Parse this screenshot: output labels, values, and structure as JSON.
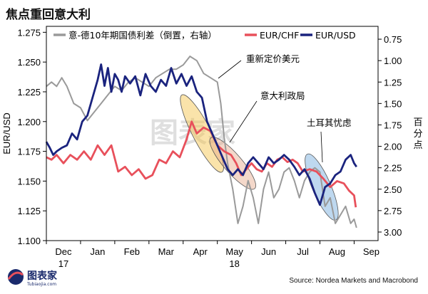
{
  "page": {
    "title": "焦点重回意大利",
    "source": "Source: Nordea Markets and Macrobond",
    "logo_text": "图表家",
    "watermark_text": "图表家",
    "logo_subtext": "Tubiaojia.com"
  },
  "chart_data": {
    "type": "line",
    "title": "焦点重回意大利",
    "ylabel_left": "EUR/USD",
    "ylabel_right": "百分点",
    "yleft_ticks": [
      "1.100",
      "1.125",
      "1.150",
      "1.175",
      "1.200",
      "1.225",
      "1.250",
      "1.275"
    ],
    "yleft_range": [
      1.1,
      1.28
    ],
    "yright_ticks": [
      "0.75",
      "1.00",
      "1.25",
      "1.50",
      "1.75",
      "2.00",
      "2.25",
      "2.50",
      "2.75",
      "3.00"
    ],
    "yright_range": [
      0.6,
      3.1
    ],
    "yright_inverted": true,
    "x_ticks": [
      "Dec",
      "Jan",
      "Feb",
      "Mar",
      "Apr",
      "May",
      "Jun",
      "Jul",
      "Aug",
      "Sep"
    ],
    "x_year_labels": [
      {
        "at": "Dec",
        "text": "17"
      },
      {
        "at": "May",
        "text": "18"
      }
    ],
    "x_range_months": [
      0,
      9.7
    ],
    "grid": false,
    "legend": "top",
    "series": [
      {
        "name": "意-德10年期国债利差（倒置，右轴）",
        "axis": "right",
        "color": "#9a9a9a",
        "x": [
          0.0,
          0.15,
          0.3,
          0.45,
          0.6,
          0.8,
          1.0,
          1.2,
          1.4,
          1.6,
          1.8,
          2.0,
          2.2,
          2.4,
          2.6,
          2.8,
          3.0,
          3.2,
          3.4,
          3.6,
          3.8,
          4.0,
          4.2,
          4.4,
          4.6,
          4.8,
          5.0,
          5.1,
          5.2,
          5.3,
          5.45,
          5.6,
          5.75,
          5.9,
          6.05,
          6.2,
          6.35,
          6.5,
          6.65,
          6.8,
          6.95,
          7.1,
          7.25,
          7.4,
          7.55,
          7.7,
          7.85,
          8.0,
          8.15,
          8.3,
          8.45,
          8.6,
          8.75,
          8.9,
          9.0,
          9.07
        ],
        "values": [
          1.3,
          1.25,
          1.3,
          1.2,
          1.3,
          1.5,
          1.55,
          1.7,
          1.6,
          1.5,
          1.4,
          1.3,
          1.35,
          1.25,
          1.2,
          1.25,
          1.3,
          1.2,
          1.15,
          1.1,
          1.1,
          1.05,
          0.95,
          1.0,
          1.15,
          1.2,
          1.25,
          1.5,
          1.9,
          2.2,
          2.5,
          2.9,
          2.7,
          2.4,
          2.6,
          2.9,
          2.5,
          2.3,
          2.6,
          2.5,
          2.3,
          2.25,
          2.4,
          2.6,
          2.4,
          2.3,
          2.25,
          2.3,
          2.7,
          2.6,
          2.9,
          2.8,
          2.7,
          2.9,
          2.85,
          2.95
        ]
      },
      {
        "name": "EUR/CHF",
        "axis": "left",
        "color": "#e8505b",
        "x": [
          0.0,
          0.15,
          0.3,
          0.5,
          0.7,
          0.9,
          1.1,
          1.3,
          1.5,
          1.7,
          1.9,
          2.1,
          2.3,
          2.5,
          2.7,
          2.9,
          3.1,
          3.3,
          3.5,
          3.7,
          3.9,
          4.1,
          4.25,
          4.4,
          4.6,
          4.8,
          5.0,
          5.2,
          5.4,
          5.55,
          5.7,
          5.85,
          6.0,
          6.15,
          6.3,
          6.45,
          6.6,
          6.75,
          6.9,
          7.05,
          7.2,
          7.35,
          7.5,
          7.7,
          7.9,
          8.1,
          8.3,
          8.5,
          8.7,
          8.85,
          9.0,
          9.05
        ],
        "values": [
          1.17,
          1.168,
          1.172,
          1.165,
          1.172,
          1.168,
          1.175,
          1.168,
          1.18,
          1.172,
          1.18,
          1.158,
          1.162,
          1.155,
          1.16,
          1.152,
          1.155,
          1.168,
          1.165,
          1.175,
          1.17,
          1.185,
          1.2,
          1.19,
          1.195,
          1.192,
          1.18,
          1.175,
          1.172,
          1.165,
          1.155,
          1.16,
          1.165,
          1.16,
          1.158,
          1.165,
          1.162,
          1.168,
          1.17,
          1.166,
          1.168,
          1.165,
          1.158,
          1.16,
          1.158,
          1.152,
          1.145,
          1.15,
          1.148,
          1.142,
          1.138,
          1.128
        ]
      },
      {
        "name": "EUR/USD",
        "axis": "left",
        "color": "#1a237e",
        "x": [
          0.0,
          0.1,
          0.2,
          0.3,
          0.45,
          0.6,
          0.75,
          0.9,
          1.05,
          1.2,
          1.35,
          1.5,
          1.6,
          1.7,
          1.8,
          1.9,
          2.0,
          2.1,
          2.2,
          2.3,
          2.45,
          2.6,
          2.75,
          2.9,
          3.05,
          3.2,
          3.35,
          3.5,
          3.65,
          3.8,
          3.95,
          4.1,
          4.25,
          4.4,
          4.55,
          4.7,
          4.85,
          5.0,
          5.15,
          5.3,
          5.45,
          5.6,
          5.75,
          5.9,
          6.05,
          6.2,
          6.35,
          6.5,
          6.65,
          6.8,
          6.95,
          7.1,
          7.25,
          7.4,
          7.55,
          7.7,
          7.85,
          8.0,
          8.15,
          8.3,
          8.45,
          8.6,
          8.75,
          8.9,
          9.0,
          9.07
        ],
        "values": [
          1.183,
          1.178,
          1.172,
          1.175,
          1.178,
          1.18,
          1.19,
          1.185,
          1.2,
          1.205,
          1.22,
          1.235,
          1.248,
          1.23,
          1.245,
          1.225,
          1.24,
          1.235,
          1.225,
          1.238,
          1.232,
          1.238,
          1.222,
          1.24,
          1.23,
          1.225,
          1.235,
          1.23,
          1.245,
          1.232,
          1.24,
          1.23,
          1.238,
          1.225,
          1.22,
          1.2,
          1.19,
          1.18,
          1.17,
          1.16,
          1.155,
          1.16,
          1.155,
          1.165,
          1.17,
          1.165,
          1.16,
          1.17,
          1.165,
          1.168,
          1.172,
          1.168,
          1.162,
          1.155,
          1.16,
          1.152,
          1.14,
          1.13,
          1.145,
          1.148,
          1.155,
          1.158,
          1.168,
          1.172,
          1.165,
          1.162
        ]
      }
    ],
    "annotations": [
      {
        "text": "重新定价美元",
        "x": 3.6,
        "y_right": 1.95
      },
      {
        "text": "意大利政局",
        "x": 5.9,
        "y_right": 2.35
      },
      {
        "text": "土耳其忧虑",
        "x": 8.5,
        "y_right": 2.7
      }
    ],
    "highlights": [
      {
        "color": "#f5c242",
        "x1": 4.1,
        "y1": 1.215,
        "x2": 5.0,
        "y2": 1.165
      },
      {
        "color": "#e7a98a",
        "x1": 5.0,
        "y1": 1.18,
        "x2": 5.9,
        "y2": 1.15
      },
      {
        "color": "#6fa8dc",
        "x1": 7.75,
        "y1": 1.165,
        "x2": 8.35,
        "y2": 1.125
      }
    ]
  }
}
